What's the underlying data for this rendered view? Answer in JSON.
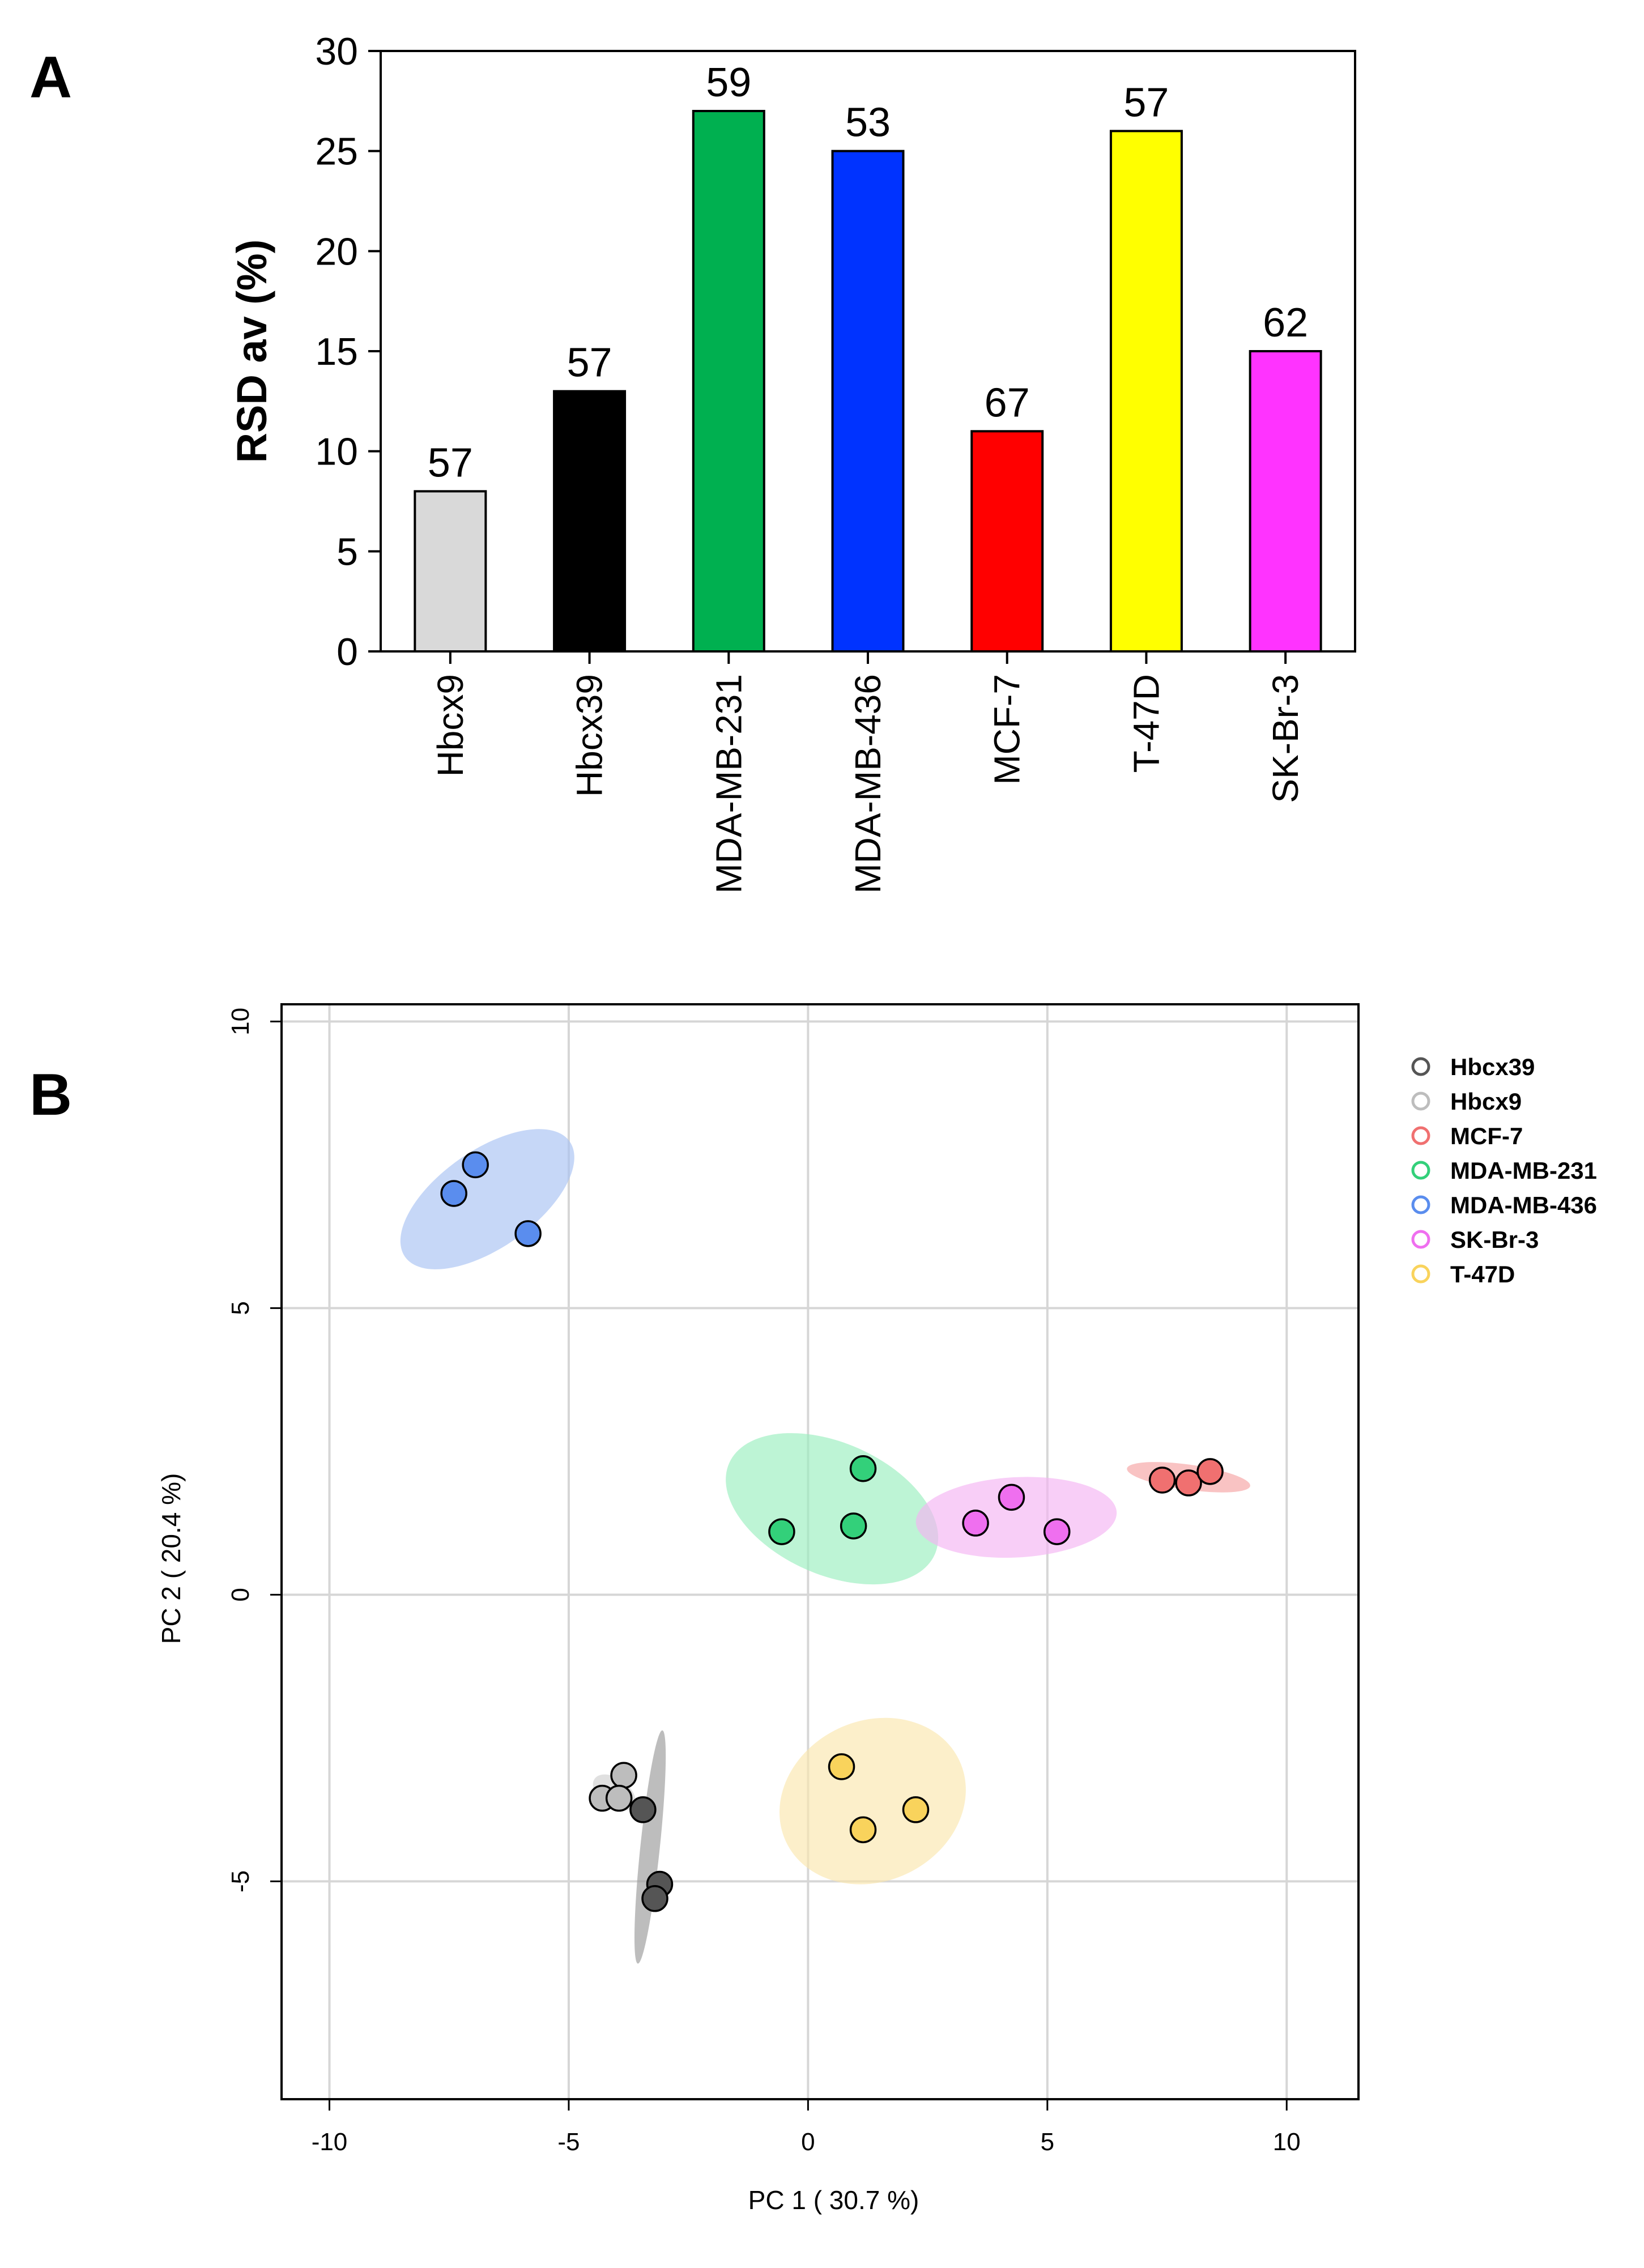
{
  "panel_a_letter": "A",
  "panel_b_letter": "B",
  "colors": {
    "Hbcx9": "#d9d9d9",
    "Hbcx39": "#000000",
    "MDA-MB-231": "#00b050",
    "MDA-MB-436": "#0033ff",
    "MCF-7": "#ff0000",
    "T-47D": "#ffff00",
    "SK-Br-3": "#ff33ff"
  },
  "chart_data": [
    {
      "type": "bar",
      "title": "",
      "xlabel": "",
      "ylabel": "RSD av (%)",
      "ylim": [
        0,
        30
      ],
      "yticks": [
        0,
        5,
        10,
        15,
        20,
        25,
        30
      ],
      "categories": [
        "Hbcx9",
        "Hbcx39",
        "MDA-MB-231",
        "MDA-MB-436",
        "MCF-7",
        "T-47D",
        "SK-Br-3"
      ],
      "values": [
        8,
        13,
        27,
        25,
        11,
        26,
        15
      ],
      "bar_labels": [
        "57",
        "57",
        "59",
        "53",
        "67",
        "57",
        "62"
      ],
      "bar_colors": [
        "#d9d9d9",
        "#000000",
        "#00b050",
        "#0033ff",
        "#ff0000",
        "#ffff00",
        "#ff33ff"
      ],
      "grid": false
    },
    {
      "type": "scatter",
      "title": "",
      "xlabel": "PC 1 ( 30.7 %)",
      "ylabel": "PC 2 ( 20.4 %)",
      "xlim": [
        -11,
        11.5
      ],
      "ylim": [
        -8.8,
        10.3
      ],
      "xticks": [
        -10,
        -5,
        0,
        5,
        10
      ],
      "yticks": [
        -5,
        0,
        5,
        10
      ],
      "grid": true,
      "legend_position": "right",
      "series": [
        {
          "name": "Hbcx39",
          "color": "#555555",
          "ellipse": "#9a9a9a",
          "points": [
            [
              -3.45,
              -3.75
            ],
            [
              -3.1,
              -5.05
            ],
            [
              -3.2,
              -5.3
            ]
          ],
          "ellipse_shape": {
            "cx": -3.3,
            "cy": -4.4,
            "rx": 2.45,
            "ry": 0.17,
            "angle": -84
          }
        },
        {
          "name": "Hbcx9",
          "color": "#bdbdbd",
          "ellipse": "#cfcfcf",
          "points": [
            [
              -3.85,
              -3.15
            ],
            [
              -4.3,
              -3.55
            ],
            [
              -3.95,
              -3.55
            ]
          ],
          "ellipse_shape": {
            "cx": -4.05,
            "cy": -3.45,
            "rx": 0.5,
            "ry": 0.25,
            "angle": 35
          }
        },
        {
          "name": "MCF-7",
          "color": "#f07070",
          "ellipse": "#f6a3a3",
          "points": [
            [
              7.4,
              2.0
            ],
            [
              7.95,
              1.95
            ],
            [
              8.4,
              2.15
            ]
          ],
          "ellipse_shape": {
            "cx": 7.95,
            "cy": 2.05,
            "rx": 1.3,
            "ry": 0.22,
            "angle": 8
          }
        },
        {
          "name": "MDA-MB-231",
          "color": "#33d07a",
          "ellipse": "#99eebf",
          "points": [
            [
              -0.55,
              1.1
            ],
            [
              1.15,
              2.2
            ],
            [
              0.95,
              1.2
            ]
          ],
          "ellipse_shape": {
            "cx": 0.5,
            "cy": 1.5,
            "rx": 2.35,
            "ry": 1.15,
            "angle": 24
          }
        },
        {
          "name": "MDA-MB-436",
          "color": "#5a8dee",
          "ellipse": "#a8c2f2",
          "points": [
            [
              -7.4,
              7.0
            ],
            [
              -6.95,
              7.5
            ],
            [
              -5.85,
              6.3
            ]
          ],
          "ellipse_shape": {
            "cx": -6.7,
            "cy": 6.9,
            "rx": 2.1,
            "ry": 0.85,
            "angle": -35
          }
        },
        {
          "name": "SK-Br-3",
          "color": "#ef6fef",
          "ellipse": "#f5b3f2",
          "points": [
            [
              3.5,
              1.25
            ],
            [
              4.25,
              1.7
            ],
            [
              5.2,
              1.1
            ]
          ],
          "ellipse_shape": {
            "cx": 4.35,
            "cy": 1.35,
            "rx": 2.1,
            "ry": 0.7,
            "angle": -3
          }
        },
        {
          "name": "T-47D",
          "color": "#f9d35c",
          "ellipse": "#fbe7ad",
          "points": [
            [
              0.7,
              -3.0
            ],
            [
              1.15,
              -4.1
            ],
            [
              2.25,
              -3.75
            ]
          ],
          "ellipse_shape": {
            "cx": 1.35,
            "cy": -3.6,
            "rx": 2.0,
            "ry": 1.4,
            "angle": -25
          }
        }
      ]
    }
  ]
}
